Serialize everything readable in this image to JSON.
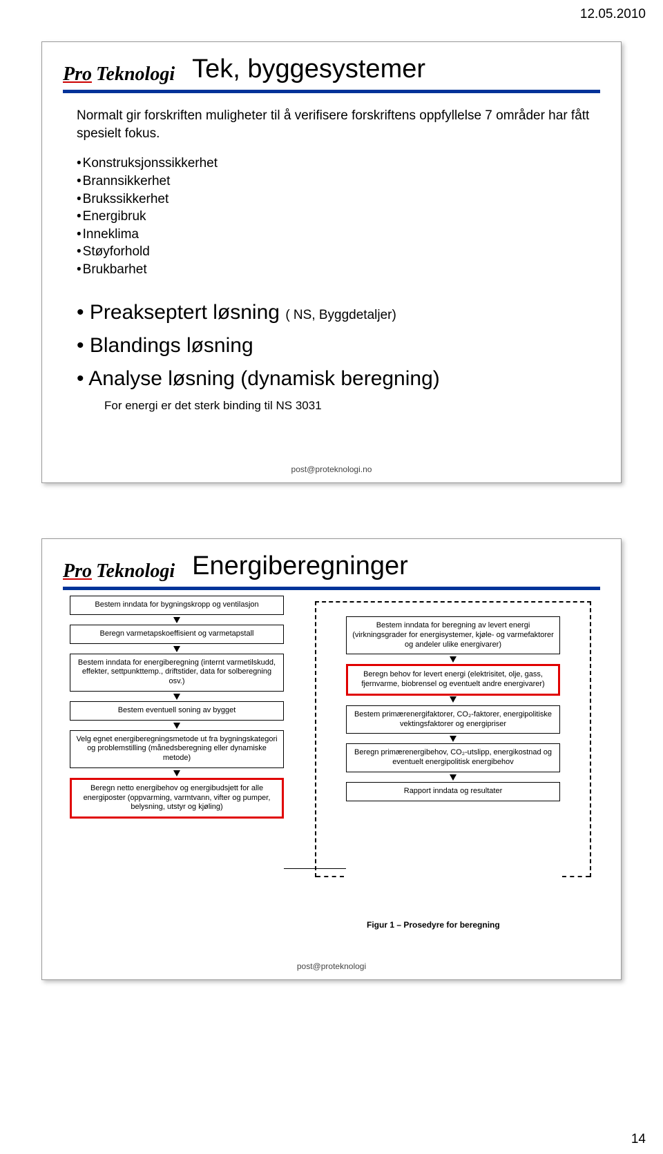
{
  "page": {
    "date": "12.05.2010",
    "number": "14"
  },
  "logo": {
    "pro": "Pro",
    "tek": "Teknologi"
  },
  "footer_email": "post@proteknologi.no",
  "footer_email2": "post@proteknologi",
  "slide1": {
    "title": "Tek, byggesystemer",
    "intro": "Normalt gir forskriften muligheter til å verifisere forskriftens oppfyllelse 7 områder har fått spesielt fokus.",
    "bullets_small": [
      "Konstruksjonssikkerhet",
      "Brannsikkerhet",
      "Brukssikkerhet",
      "Energibruk",
      "Inneklima",
      "Støyforhold",
      "Brukbarhet"
    ],
    "bullets_big": [
      {
        "text": "Preakseptert løsning ",
        "note": "( NS, Byggdetaljer)"
      },
      {
        "text": "Blandings løsning",
        "note": ""
      },
      {
        "text": "Analyse løsning  (dynamisk beregning)",
        "note": ""
      }
    ],
    "subline": "For energi er det sterk binding til NS 3031"
  },
  "slide2": {
    "title": "Energiberegninger",
    "left_boxes": [
      "Bestem inndata for bygningskropp og ventilasjon",
      "Beregn varmetapskoeffisient og varmetapstall",
      "Bestem inndata for energiberegning (internt varmetilskudd, effekter, settpunkttemp., driftstider, data for solberegning osv.)",
      "Bestem eventuell soning av bygget",
      "Velg egnet energiberegningsmetode ut fra bygningskategori og problemstilling (månedsberegning eller dynamiske metode)",
      "Beregn netto energibehov og energibudsjett for alle energiposter\n(oppvarming, varmtvann, vifter og pumper, belysning, utstyr og kjøling)"
    ],
    "right_boxes": [
      "Bestem inndata for beregning av levert energi\n(virkningsgrader for energisystemer, kjøle- og varmefaktorer og andeler ulike energivarer)",
      "Beregn behov for levert energi\n(elektrisitet, olje, gass, fjernvarme, biobrensel og eventuelt andre energivarer)",
      "Bestem primærenergifaktorer, CO₂-faktorer, energipolitiske vektingsfaktorer og energipriser",
      "Beregn primærenergibehov, CO₂-utslipp, energikostnad og eventuelt energipolitisk energibehov",
      "Rapport\ninndata og resultater"
    ],
    "caption": "Figur 1 – Prosedyre for beregning"
  }
}
